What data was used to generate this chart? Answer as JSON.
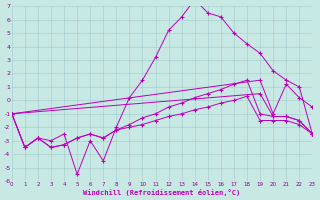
{
  "bg_color": "#c8e8e4",
  "line_color": "#bb00bb",
  "grid_color": "#a0cccc",
  "tick_color": "#880088",
  "xlabel": "Windchill (Refroidissement éolien,°C)",
  "xlim": [
    0,
    23
  ],
  "ylim": [
    -6,
    7
  ],
  "xticks": [
    0,
    1,
    2,
    3,
    4,
    5,
    6,
    7,
    8,
    9,
    10,
    11,
    12,
    13,
    14,
    15,
    16,
    17,
    18,
    19,
    20,
    21,
    22,
    23
  ],
  "yticks": [
    -6,
    -5,
    -4,
    -3,
    -2,
    -1,
    0,
    1,
    2,
    3,
    4,
    5,
    6,
    7
  ],
  "series_main": [
    [
      0,
      -1.0
    ],
    [
      1,
      -3.5
    ],
    [
      2,
      -2.8
    ],
    [
      3,
      -3.0
    ],
    [
      4,
      -2.5
    ],
    [
      5,
      -5.5
    ],
    [
      6,
      -3.0
    ],
    [
      7,
      -4.5
    ],
    [
      8,
      -2.0
    ],
    [
      9,
      0.2
    ],
    [
      10,
      1.5
    ],
    [
      11,
      3.2
    ],
    [
      12,
      5.2
    ],
    [
      13,
      6.2
    ],
    [
      14,
      7.5
    ],
    [
      15,
      6.5
    ],
    [
      16,
      6.2
    ],
    [
      17,
      5.0
    ],
    [
      18,
      4.2
    ],
    [
      19,
      3.5
    ],
    [
      20,
      2.2
    ],
    [
      21,
      1.5
    ],
    [
      22,
      1.0
    ],
    [
      23,
      -2.5
    ]
  ],
  "series_diag1": [
    [
      0,
      -1.0
    ],
    [
      1,
      -3.5
    ],
    [
      2,
      -2.8
    ],
    [
      3,
      -3.5
    ],
    [
      4,
      -3.3
    ],
    [
      5,
      -2.8
    ],
    [
      6,
      -2.5
    ],
    [
      7,
      -2.8
    ],
    [
      8,
      -2.2
    ],
    [
      9,
      -1.8
    ],
    [
      10,
      -1.3
    ],
    [
      11,
      -1.0
    ],
    [
      12,
      -0.5
    ],
    [
      13,
      -0.2
    ],
    [
      14,
      0.2
    ],
    [
      15,
      0.5
    ],
    [
      16,
      0.8
    ],
    [
      17,
      1.2
    ],
    [
      18,
      1.5
    ],
    [
      19,
      -1.0
    ],
    [
      20,
      -1.2
    ],
    [
      21,
      -1.2
    ],
    [
      22,
      -1.5
    ],
    [
      23,
      -2.5
    ]
  ],
  "series_diag2": [
    [
      0,
      -1.0
    ],
    [
      1,
      -3.5
    ],
    [
      2,
      -2.8
    ],
    [
      3,
      -3.5
    ],
    [
      4,
      -3.3
    ],
    [
      5,
      -2.8
    ],
    [
      6,
      -2.5
    ],
    [
      7,
      -2.8
    ],
    [
      8,
      -2.2
    ],
    [
      9,
      -2.0
    ],
    [
      10,
      -1.8
    ],
    [
      11,
      -1.5
    ],
    [
      12,
      -1.2
    ],
    [
      13,
      -1.0
    ],
    [
      14,
      -0.7
    ],
    [
      15,
      -0.5
    ],
    [
      16,
      -0.2
    ],
    [
      17,
      0.0
    ],
    [
      18,
      0.3
    ],
    [
      19,
      -1.5
    ],
    [
      20,
      -1.5
    ],
    [
      21,
      -1.5
    ],
    [
      22,
      -1.8
    ],
    [
      23,
      -2.5
    ]
  ],
  "series_flat1": [
    [
      0,
      -1.0
    ],
    [
      19,
      1.5
    ],
    [
      20,
      -1.0
    ],
    [
      21,
      1.2
    ],
    [
      22,
      0.2
    ],
    [
      23,
      -0.5
    ]
  ],
  "series_flat2": [
    [
      0,
      -1.0
    ],
    [
      19,
      0.5
    ],
    [
      20,
      -1.2
    ],
    [
      21,
      -1.2
    ],
    [
      22,
      -1.5
    ],
    [
      23,
      -2.5
    ]
  ]
}
